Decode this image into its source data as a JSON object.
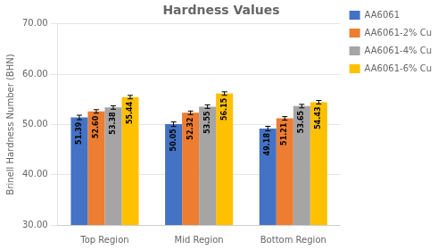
{
  "chart_data": {
    "type": "bar",
    "title": "Hardness Values",
    "ylabel": "Brinell Hardness Number (BHN)",
    "categories": [
      "Top Region",
      "Mid Region",
      "Bottom Region"
    ],
    "series": [
      {
        "name": "AA6061",
        "color": "#4472C4",
        "values": [
          51.39,
          50.05,
          49.18
        ],
        "value_labels": [
          "51.39",
          "50.05",
          "49.18"
        ],
        "errors": [
          0.45,
          0.45,
          0.45
        ]
      },
      {
        "name": "AA6061-2% Cu",
        "color": "#ED7D31",
        "values": [
          52.6,
          52.32,
          51.21
        ],
        "value_labels": [
          "52.60",
          "52.32",
          "51.21"
        ],
        "errors": [
          0.35,
          0.35,
          0.35
        ]
      },
      {
        "name": "AA6061-4% Cu",
        "color": "#A5A5A5",
        "values": [
          53.38,
          53.55,
          53.65
        ],
        "value_labels": [
          "53.38",
          "53.55",
          "53.65"
        ],
        "errors": [
          0.35,
          0.35,
          0.35
        ]
      },
      {
        "name": "AA6061-6% Cu",
        "color": "#FFC000",
        "values": [
          55.44,
          56.15,
          54.43
        ],
        "value_labels": [
          "55.44",
          "56.15",
          "54.43"
        ],
        "errors": [
          0.35,
          0.35,
          0.35
        ]
      }
    ],
    "ylim": [
      30,
      70
    ],
    "yticks": [
      {
        "value": 30,
        "label": "30.00"
      },
      {
        "value": 40,
        "label": "40.00"
      },
      {
        "value": 50,
        "label": "50.00"
      },
      {
        "value": 60,
        "label": "60.00"
      },
      {
        "value": 70,
        "label": "70.00"
      }
    ],
    "grid": true,
    "legend": "right",
    "data_labels": true
  }
}
